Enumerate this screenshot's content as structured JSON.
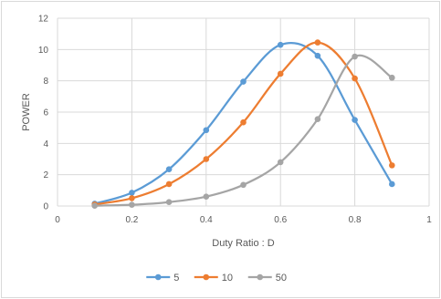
{
  "chart_data": {
    "type": "line",
    "title": "",
    "xlabel": "Duty Ratio : D",
    "ylabel": "POWER",
    "xlim": [
      0,
      1
    ],
    "ylim": [
      0,
      12
    ],
    "x_ticks": [
      0,
      0.2,
      0.4,
      0.6,
      0.8,
      1
    ],
    "x_tick_labels": [
      "0",
      "0.2",
      "0.4",
      "0.6",
      "0.8",
      "1"
    ],
    "y_ticks": [
      0,
      2,
      4,
      6,
      8,
      10,
      12
    ],
    "y_tick_labels": [
      "0",
      "2",
      "4",
      "6",
      "8",
      "10",
      "12"
    ],
    "grid": true,
    "smooth": true,
    "legend_position": "bottom",
    "x": [
      0.1,
      0.2,
      0.3,
      0.4,
      0.5,
      0.6,
      0.7,
      0.8,
      0.9
    ],
    "series": [
      {
        "name": "5",
        "color": "#5b9bd5",
        "values": [
          0.15,
          0.85,
          2.35,
          4.85,
          7.95,
          10.3,
          9.6,
          5.5,
          1.4
        ]
      },
      {
        "name": "10",
        "color": "#ed7d31",
        "values": [
          0.1,
          0.5,
          1.4,
          3.0,
          5.35,
          8.45,
          10.45,
          8.15,
          2.6
        ]
      },
      {
        "name": "50",
        "color": "#a5a5a5",
        "values": [
          0.02,
          0.08,
          0.25,
          0.6,
          1.35,
          2.8,
          5.55,
          9.55,
          8.2
        ]
      }
    ]
  }
}
